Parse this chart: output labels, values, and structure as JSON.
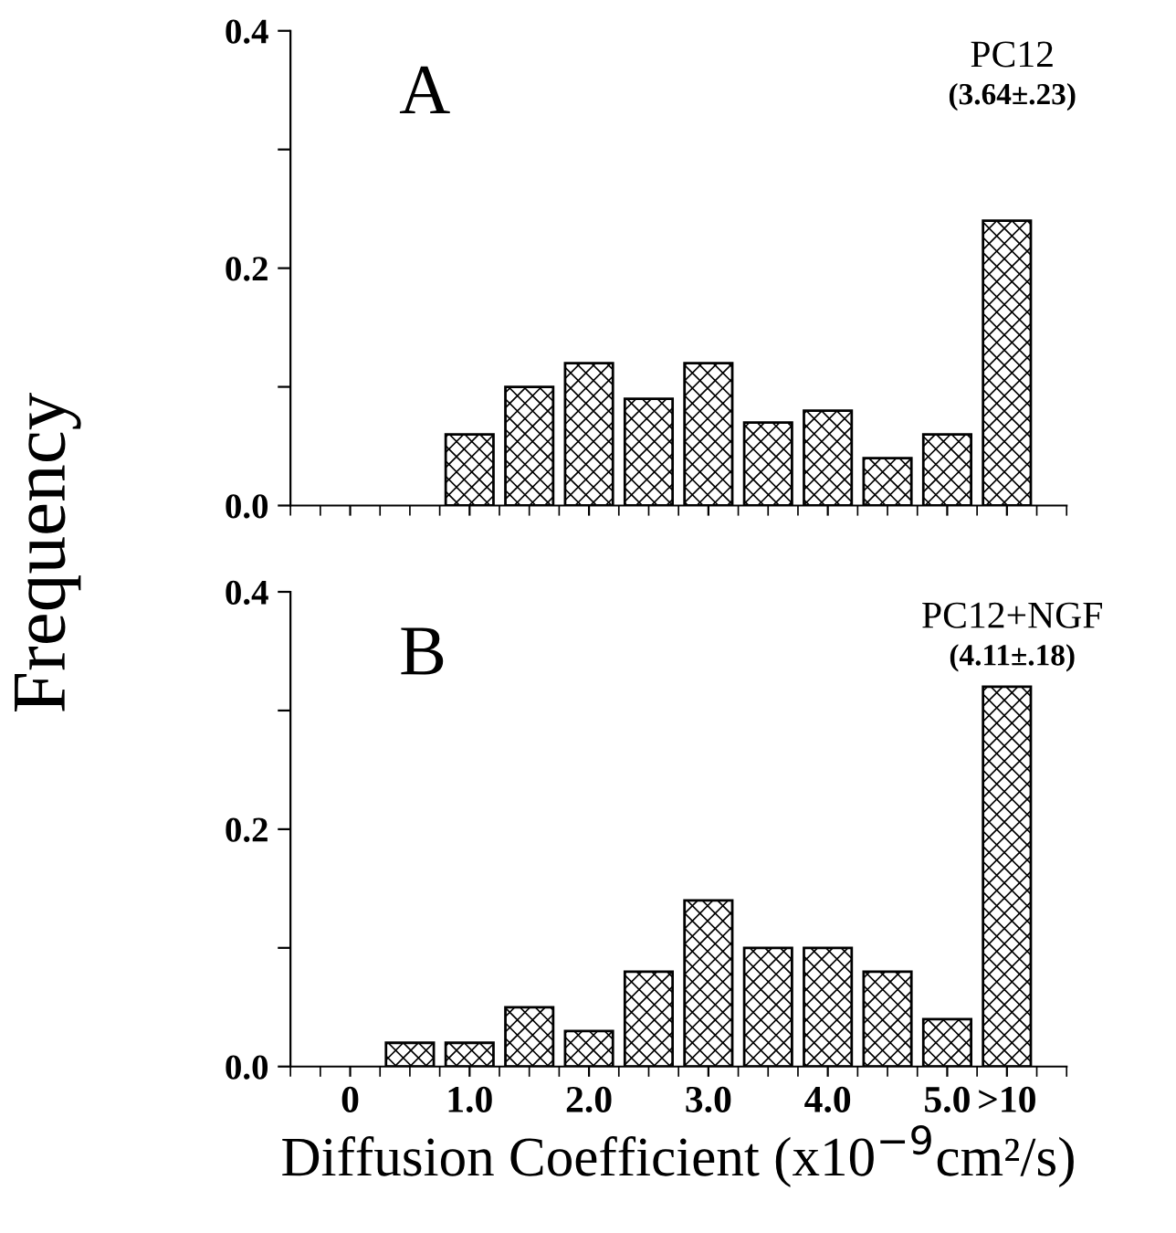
{
  "chart_data": [
    {
      "type": "bar",
      "ylabel": "Frequency",
      "annotations": [
        "A",
        "PC12",
        "(3.64±.23)"
      ],
      "series": [
        {
          "color": "#000000",
          "x": [
            1.0,
            1.5,
            2.0,
            2.5,
            3.0,
            3.5,
            4.0,
            4.5,
            5.0,
            5.5
          ],
          "values": [
            0.06,
            0.1,
            0.12,
            0.09,
            0.12,
            0.07,
            0.08,
            0.04,
            0.06,
            0.24
          ]
        }
      ],
      "xlim": [
        -0.5,
        6.0
      ],
      "ylim": [
        0,
        0.4
      ],
      "xticks": [
        {
          "value": 0,
          "label": null
        },
        {
          "value": 1,
          "label": null
        },
        {
          "value": 2,
          "label": null
        },
        {
          "value": 3,
          "label": null
        },
        {
          "value": 4,
          "label": null
        },
        {
          "value": 5,
          "label": null
        },
        {
          "value": 5.5,
          "label": null
        }
      ],
      "yticks": [
        {
          "value": 0,
          "label": "0.0"
        },
        {
          "value": 0.1,
          "label": null
        },
        {
          "value": 0.2,
          "label": "0.2"
        },
        {
          "value": 0.3,
          "label": null
        },
        {
          "value": 0.4,
          "label": "0.4"
        }
      ],
      "tick_labels": "y",
      "grid": false,
      "legend": false
    },
    {
      "type": "bar",
      "xlabel": "Diffusion Coefficient (x10$^{−9}$cm²/s)",
      "annotations": [
        "B",
        "PC12+NGF",
        "(4.11±.18)"
      ],
      "series": [
        {
          "color": "#000000",
          "x": [
            0.5,
            1.0,
            1.5,
            2.0,
            2.5,
            3.0,
            3.5,
            4.0,
            4.5,
            5.0,
            5.5
          ],
          "values": [
            0.02,
            0.02,
            0.05,
            0.03,
            0.08,
            0.14,
            0.1,
            0.1,
            0.08,
            0.04,
            0.32
          ]
        }
      ],
      "xlim": [
        -0.5,
        6.0
      ],
      "ylim": [
        0,
        0.4
      ],
      "xticks": [
        {
          "value": 0,
          "label": "0"
        },
        {
          "value": 1,
          "label": "1.0"
        },
        {
          "value": 2,
          "label": "2.0"
        },
        {
          "value": 3,
          "label": "3.0"
        },
        {
          "value": 4,
          "label": "4.0"
        },
        {
          "value": 5,
          "label": "5.0"
        },
        {
          "value": 5.5,
          "label": ">10"
        }
      ],
      "yticks": [
        {
          "value": 0,
          "label": "0.0"
        },
        {
          "value": 0.1,
          "label": null
        },
        {
          "value": 0.2,
          "label": "0.2"
        },
        {
          "value": 0.3,
          "label": null
        },
        {
          "value": 0.4,
          "label": "0.4"
        }
      ],
      "grid": false,
      "legend": false
    }
  ]
}
